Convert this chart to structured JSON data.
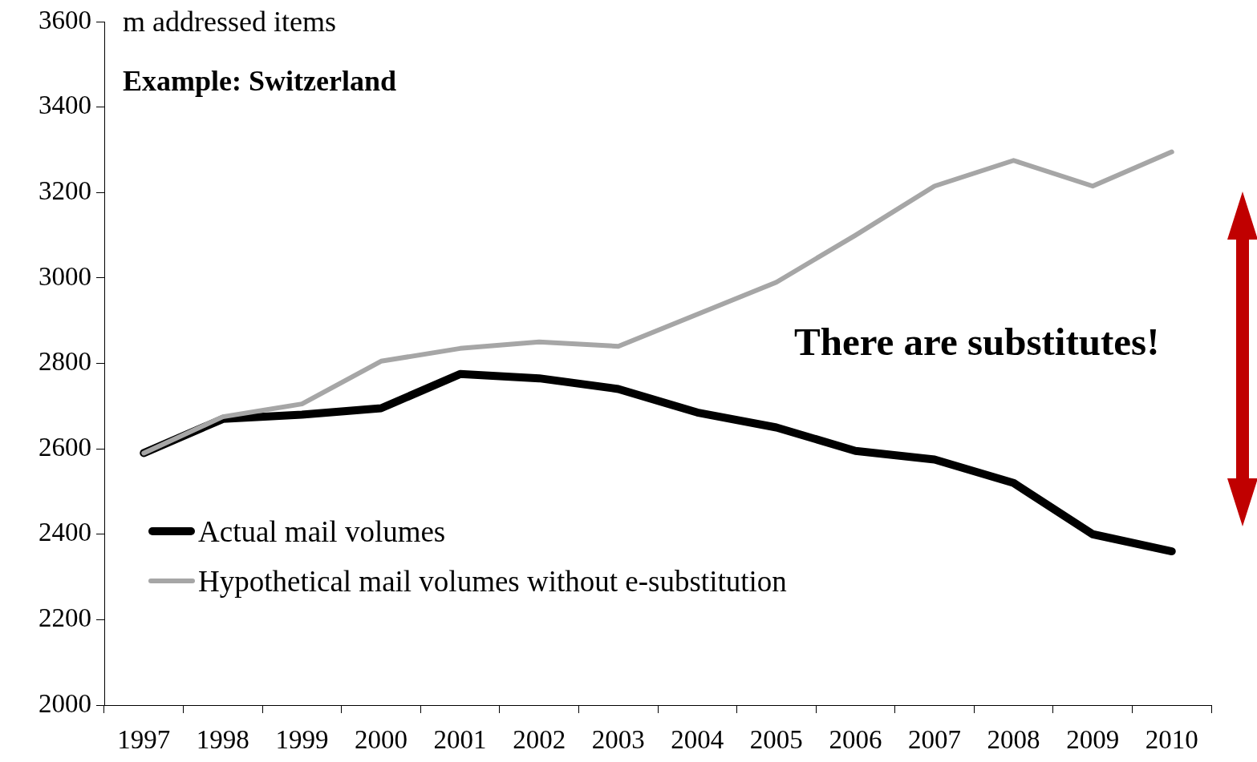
{
  "chart_data": {
    "type": "line",
    "title": "m addressed items",
    "subtitle": "Example: Switzerland",
    "categories": [
      "1997",
      "1998",
      "1999",
      "2000",
      "2001",
      "2002",
      "2003",
      "2004",
      "2005",
      "2006",
      "2007",
      "2008",
      "2009",
      "2010"
    ],
    "series": [
      {
        "name": "Actual mail volumes",
        "color": "#000000",
        "values": [
          2590,
          2670,
          2680,
          2695,
          2775,
          2765,
          2740,
          2685,
          2650,
          2595,
          2575,
          2520,
          2400,
          2360
        ]
      },
      {
        "name": "Hypothetical mail volumes without e-substitution",
        "color": "#a6a6a6",
        "values": [
          2590,
          2675,
          2705,
          2805,
          2835,
          2850,
          2840,
          2915,
          2990,
          3100,
          3215,
          3275,
          3215,
          3295
        ]
      }
    ],
    "ylim": [
      2000,
      3600
    ],
    "yticks": [
      2000,
      2200,
      2400,
      2600,
      2800,
      3000,
      3200,
      3400,
      3600
    ],
    "grid": false,
    "legend": "bottom left",
    "marker": "none",
    "line_style": "solid",
    "annotations": [
      "There are substitutes!"
    ]
  }
}
